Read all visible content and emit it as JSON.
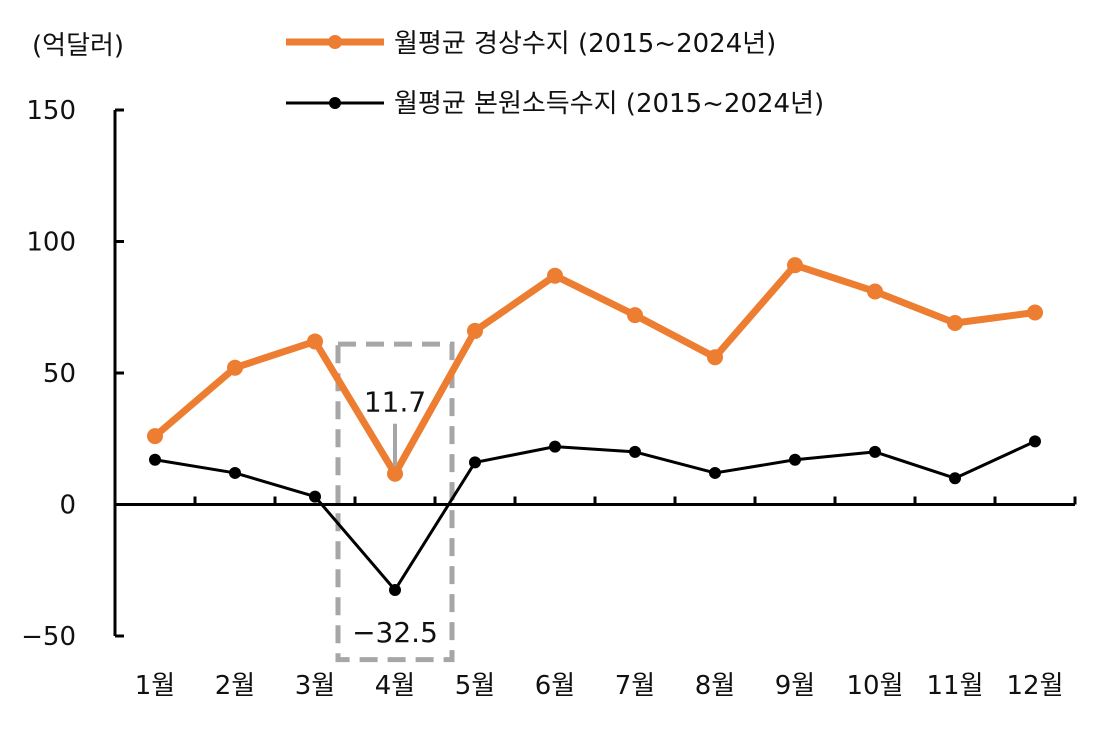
{
  "chart_data": {
    "type": "line",
    "unit_label": "(억달러)",
    "categories": [
      "1월",
      "2월",
      "3월",
      "4월",
      "5월",
      "6월",
      "7월",
      "8월",
      "9월",
      "10월",
      "11월",
      "12월"
    ],
    "y_ticks": [
      "150",
      "100",
      "50",
      "0",
      "−50"
    ],
    "ylim": [
      -50,
      150
    ],
    "series": [
      {
        "name": "월평균 경상수지 (2015~2024년)",
        "color": "#ED7D31",
        "values": [
          26,
          52,
          62,
          11.7,
          66,
          87,
          72,
          56,
          91,
          81,
          69,
          73
        ]
      },
      {
        "name": "월평균 본원소득수지 (2015~2024년)",
        "color": "#000000",
        "values": [
          17,
          12,
          3,
          -32.5,
          16,
          22,
          20,
          12,
          17,
          20,
          10,
          24
        ]
      }
    ],
    "annotations": [
      {
        "text": "11.7",
        "category": "4월",
        "series": 0
      },
      {
        "text": "−32.5",
        "category": "4월",
        "series": 1
      }
    ],
    "highlight": {
      "category": "4월",
      "color": "#A6A6A6"
    },
    "legend_position": "top"
  }
}
